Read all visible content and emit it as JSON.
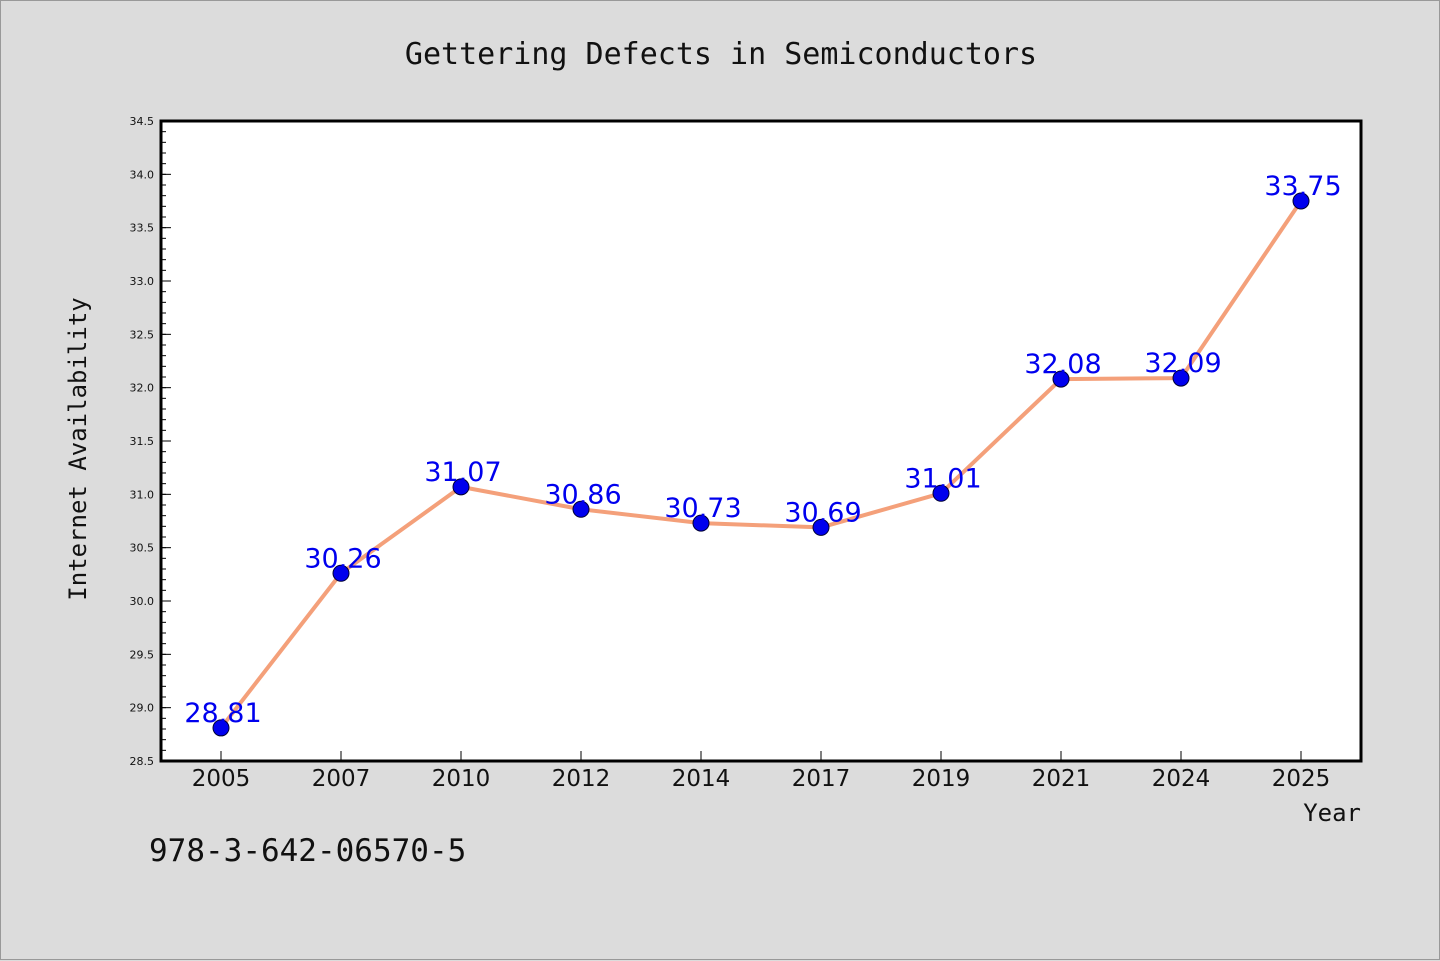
{
  "chart_data": {
    "type": "line",
    "title": "Gettering Defects in Semiconductors",
    "xlabel": "Year",
    "ylabel": "Internet Availability",
    "categories": [
      "2005",
      "2007",
      "2010",
      "2012",
      "2014",
      "2017",
      "2019",
      "2021",
      "2024",
      "2025"
    ],
    "values": [
      28.81,
      30.26,
      31.07,
      30.86,
      30.73,
      30.69,
      31.01,
      32.08,
      32.09,
      33.75
    ],
    "data_labels": [
      "28.81",
      "30.26",
      "31.07",
      "30.86",
      "30.73",
      "30.69",
      "31.01",
      "32.08",
      "32.09",
      "33.75"
    ],
    "ylim": [
      28.5,
      34.5
    ],
    "yticks": [
      "28.5",
      "29.0",
      "29.5",
      "30.0",
      "30.5",
      "31.0",
      "31.5",
      "32.0",
      "32.5",
      "33.0",
      "33.5",
      "34.0",
      "34.5"
    ],
    "grid": false,
    "legend": "none",
    "colors": {
      "line": "#f4a07a",
      "marker": "#0000ee",
      "data_label": "#0000ee",
      "plot_background": "#ffffff",
      "page_background": "#dcdcdc"
    }
  },
  "footer": {
    "code": "978-3-642-06570-5"
  }
}
